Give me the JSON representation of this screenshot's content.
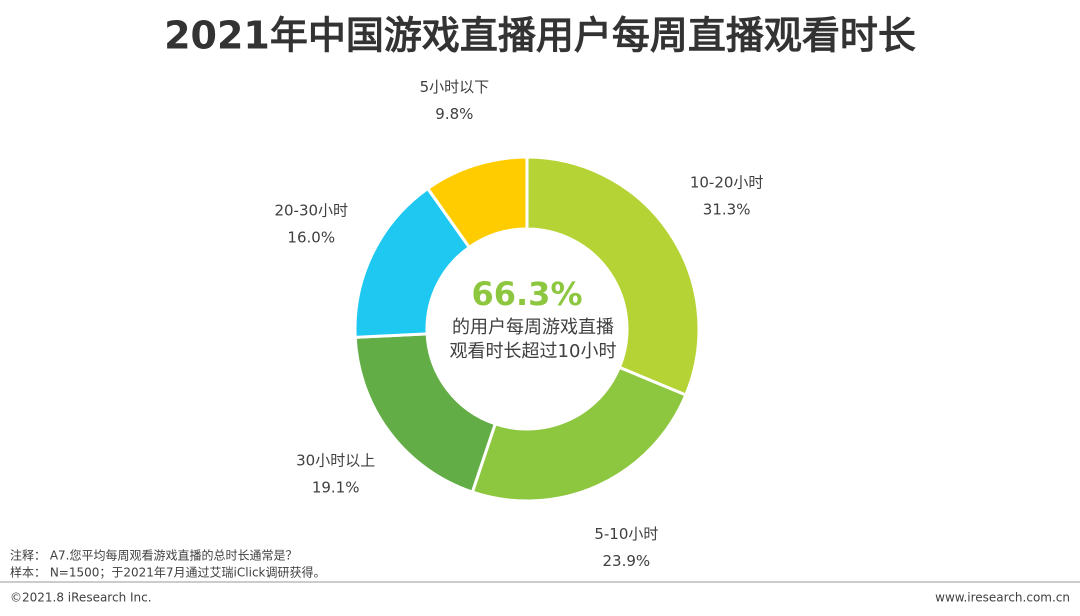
{
  "chart_data": {
    "type": "donut",
    "title": "2021年中国游戏直播用户每周直播观看时长",
    "categories": [
      "10-20小时",
      "5-10小时",
      "30小时以上",
      "20-30小时",
      "5小时以下"
    ],
    "values": [
      31.3,
      23.9,
      19.1,
      16.0,
      9.8
    ],
    "value_labels": [
      "31.3%",
      "23.9%",
      "19.1%",
      "16.0%",
      "9.8%"
    ],
    "colors": [
      "#b5d334",
      "#8dc63f",
      "#62ad45",
      "#1ec8f0",
      "#ffcc00"
    ],
    "center_highlight": "66.3%",
    "center_text": [
      "的用户每周游戏直播",
      "观看时长超过10小时"
    ]
  },
  "notes": [
    "注释： A7.您平均每周观看游戏直播的总时长通常是？",
    "样本： N=1500；于2021年7月通过艾瑞iClick调研获得。"
  ],
  "footer": {
    "left": "©2021.8 iResearch Inc.",
    "right": "www.iresearch.com.cn"
  }
}
